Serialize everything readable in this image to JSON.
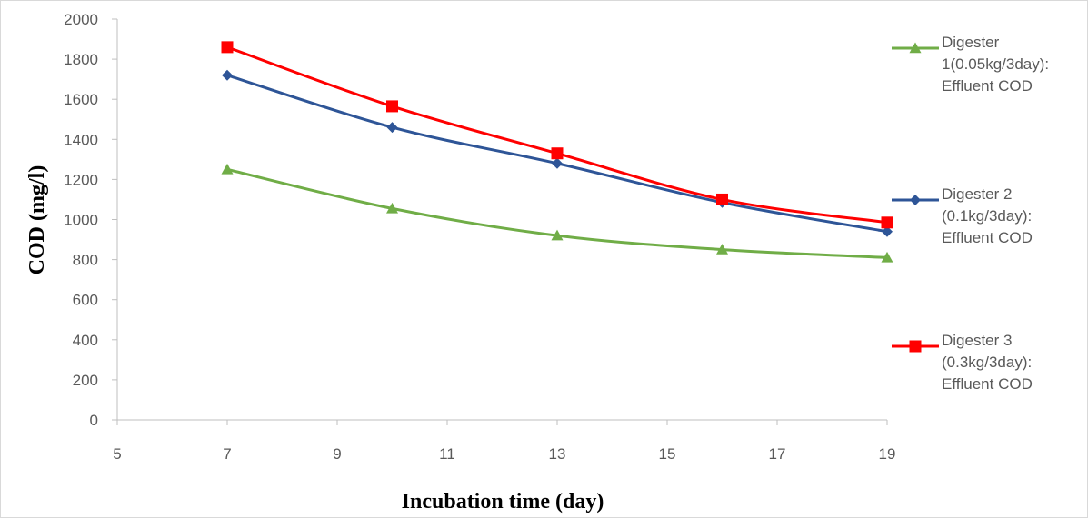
{
  "chart_data": {
    "type": "line",
    "title": "",
    "xlabel": "Incubation time (day)",
    "ylabel": "COD (mg/l)",
    "xlim": [
      5,
      19
    ],
    "ylim": [
      0,
      2000
    ],
    "xticks": [
      5,
      7,
      9,
      11,
      13,
      15,
      17,
      19
    ],
    "yticks": [
      0,
      200,
      400,
      600,
      800,
      1000,
      1200,
      1400,
      1600,
      1800,
      2000
    ],
    "grid": false,
    "legend_position": "right",
    "smooth": true,
    "series": [
      {
        "name": "Digester 1(0.05kg/3day): Effluent COD",
        "legend_lines": [
          "Digester",
          "1(0.05kg/3day):",
          "Effluent COD"
        ],
        "color": "#70ad47",
        "marker": "triangle",
        "x": [
          7,
          10,
          13,
          16,
          19
        ],
        "y": [
          1250,
          1055,
          920,
          850,
          810
        ]
      },
      {
        "name": "Digester 2 (0.1kg/3day): Effluent COD",
        "legend_lines": [
          "Digester 2",
          "(0.1kg/3day):",
          "Effluent COD"
        ],
        "color": "#2e5597",
        "marker": "diamond",
        "x": [
          7,
          10,
          13,
          16,
          19
        ],
        "y": [
          1720,
          1460,
          1280,
          1085,
          940
        ]
      },
      {
        "name": "Digester 3 (0.3kg/3day): Effluent COD",
        "legend_lines": [
          "Digester 3",
          "(0.3kg/3day):",
          "Effluent COD"
        ],
        "color": "#ff0000",
        "marker": "square",
        "x": [
          7,
          10,
          13,
          16,
          19
        ],
        "y": [
          1860,
          1565,
          1330,
          1100,
          985
        ]
      }
    ]
  }
}
